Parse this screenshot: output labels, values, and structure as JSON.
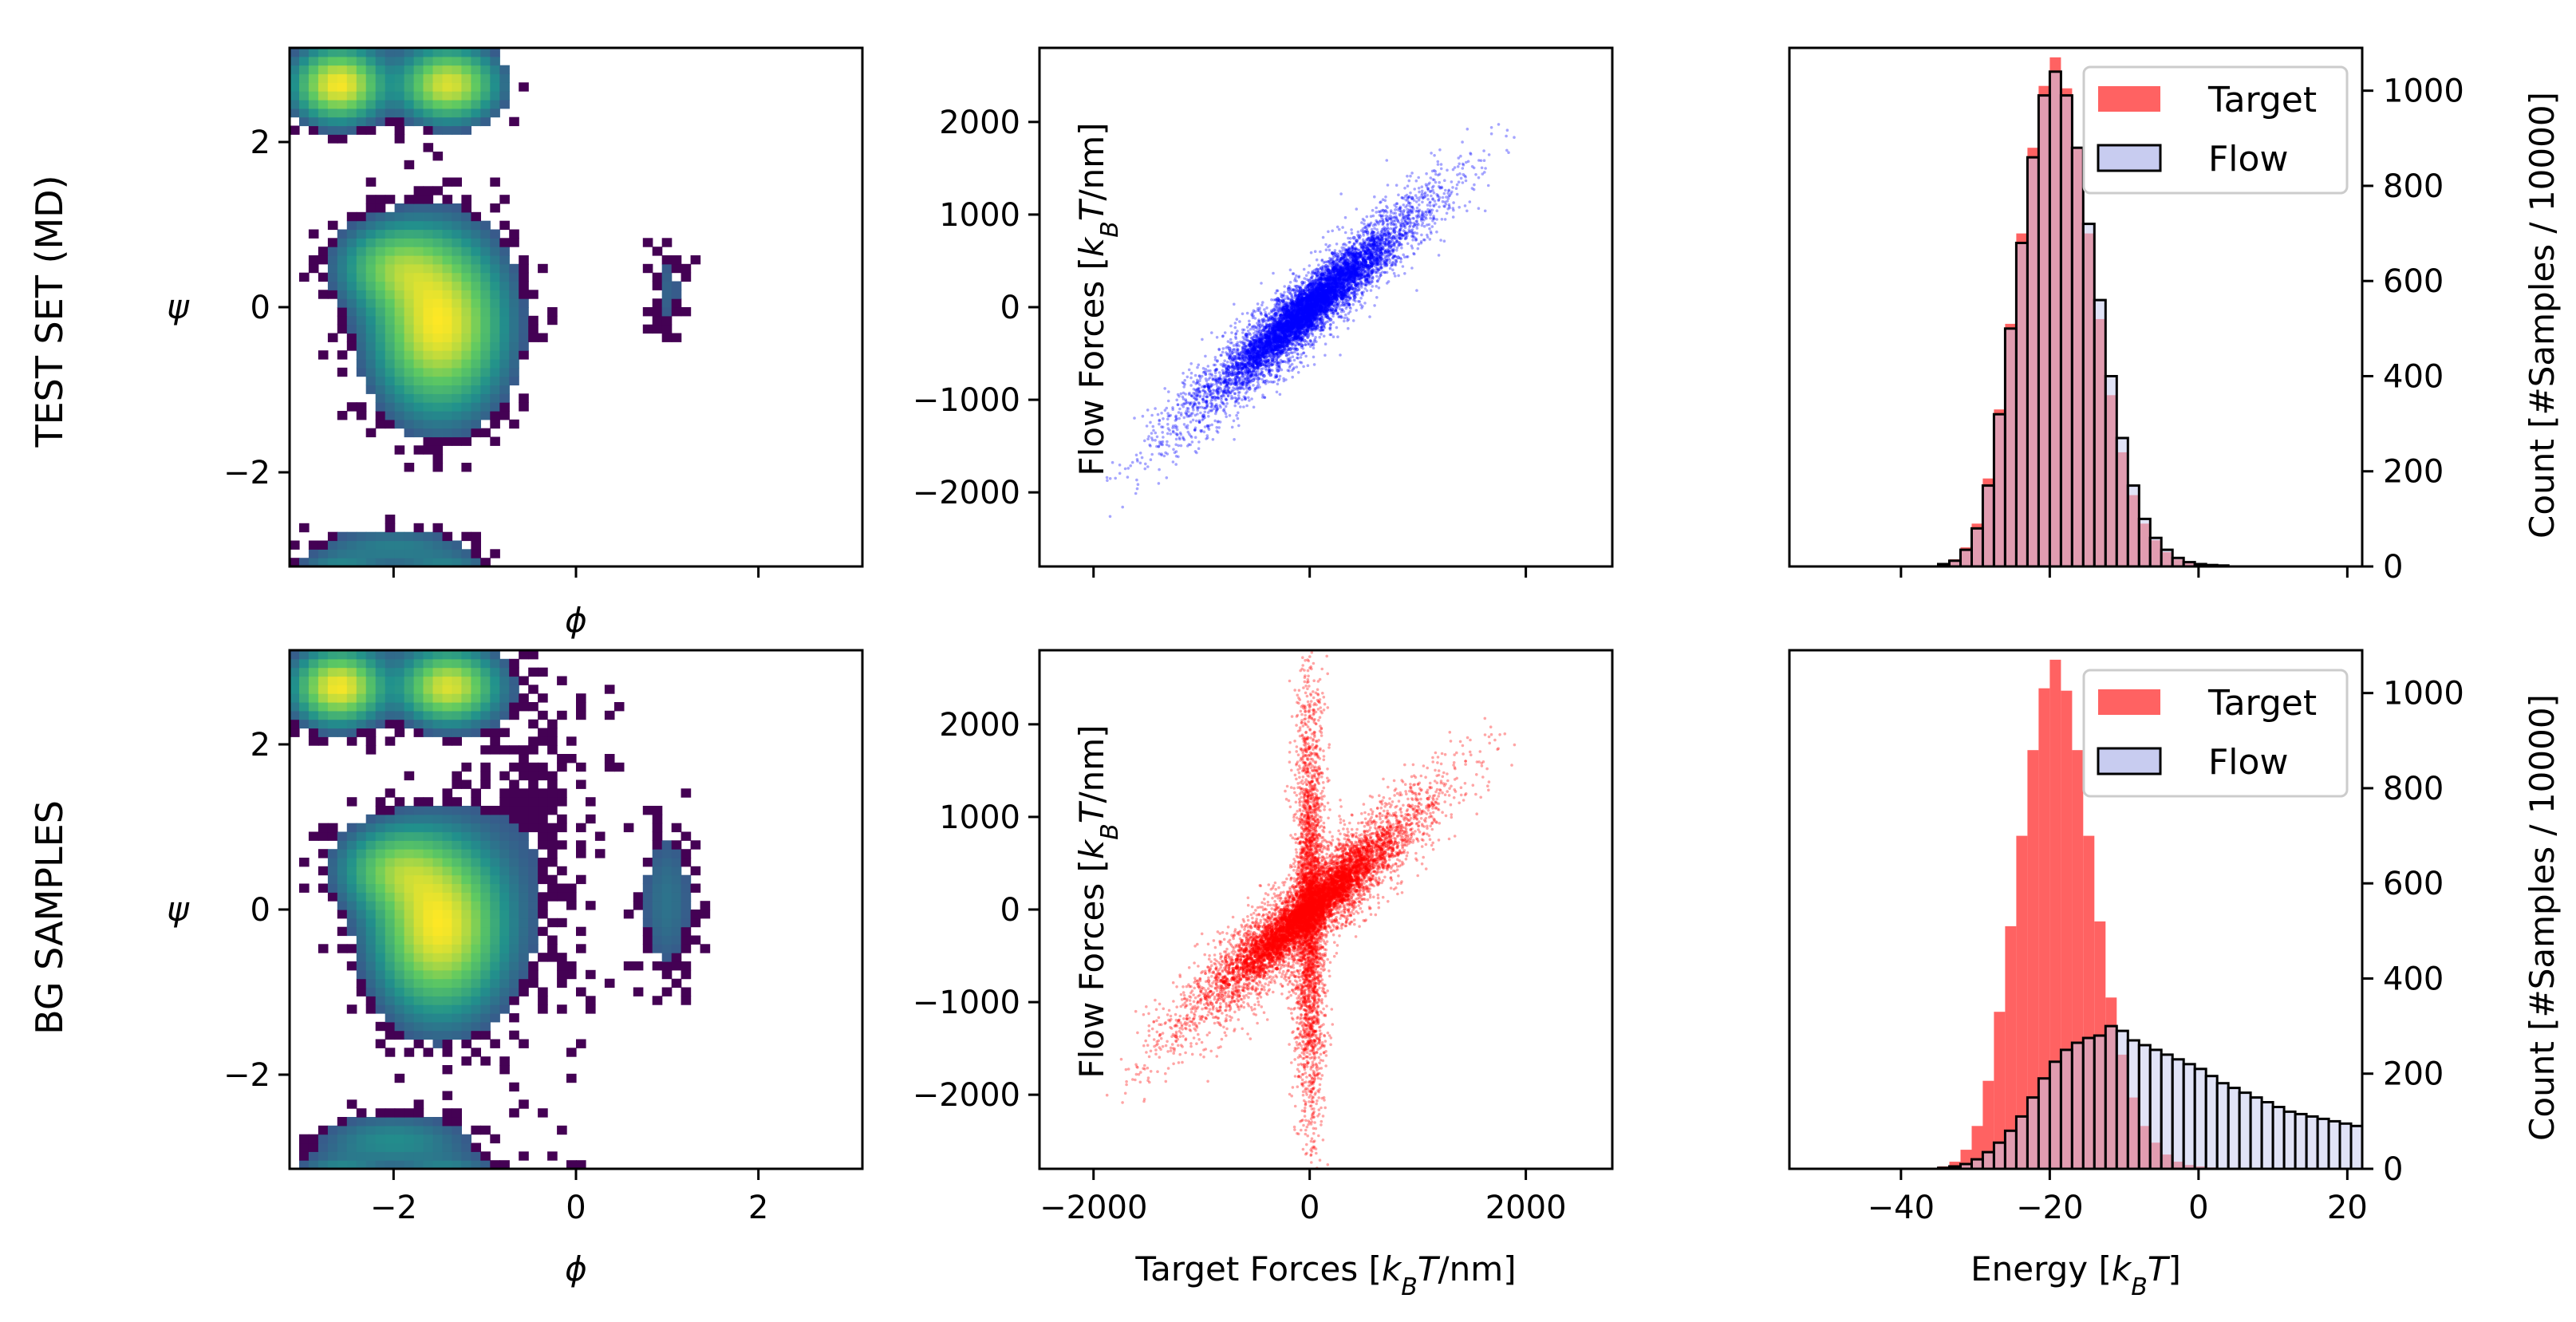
{
  "rows": [
    {
      "label": "TEST SET (MD)",
      "scatter_color": "#0000ff",
      "flow_hist": "test"
    },
    {
      "label": "BG SAMPLES",
      "scatter_color": "#ff0000",
      "flow_hist": "bg"
    }
  ],
  "colors": {
    "target_fill": "#ff6262",
    "flow_fill": "#c8ccf0",
    "flow_edge": "#000000",
    "test_scatter": "#0000ff",
    "bg_scatter": "#ff0000",
    "viridis": [
      "#440154",
      "#3b528b",
      "#21918c",
      "#5ec962",
      "#fde725"
    ]
  },
  "chart_data": [
    {
      "type": "heatmap",
      "panel": "ramachandran-test",
      "xlabel": "ϕ",
      "ylabel": "ψ",
      "xlim": [
        -3.14,
        3.14
      ],
      "ylim": [
        -3.14,
        3.14
      ],
      "xticks": [
        -2,
        0,
        2
      ],
      "yticks": [
        -2,
        0,
        2
      ],
      "xtick_labels_shown": false,
      "ytick_labels": [
        "−2",
        "0",
        "2"
      ],
      "modes": [
        {
          "phi": -2.6,
          "psi": 2.7,
          "sphi": 0.28,
          "spsi": 0.25,
          "w": 1.0
        },
        {
          "phi": -1.4,
          "psi": 2.7,
          "sphi": 0.3,
          "spsi": 0.25,
          "w": 0.9
        },
        {
          "phi": -1.5,
          "psi": -0.2,
          "sphi": 0.4,
          "spsi": 0.6,
          "w": 1.0
        },
        {
          "phi": -2.0,
          "psi": 0.5,
          "sphi": 0.35,
          "spsi": 0.3,
          "w": 0.5
        },
        {
          "phi": 1.0,
          "psi": 0.2,
          "sphi": 0.15,
          "spsi": 0.4,
          "w": 0.08
        },
        {
          "phi": -2.0,
          "psi": -2.9,
          "sphi": 0.5,
          "spsi": 0.15,
          "w": 0.15
        }
      ]
    },
    {
      "type": "scatter",
      "panel": "forces-test",
      "xlabel": "",
      "ylabel": "Flow Forces [k_BT/nm]",
      "xlim": [
        -2500,
        2800
      ],
      "ylim": [
        -2800,
        2800
      ],
      "xticks": [
        -2000,
        0,
        2000
      ],
      "yticks": [
        -2000,
        -1000,
        0,
        1000,
        2000
      ],
      "xtick_labels_shown": false,
      "ytick_labels": [
        "−2000",
        "−1000",
        "0",
        "1000",
        "2000"
      ],
      "series": [
        {
          "relation": "y≈x",
          "spread": 250,
          "x_range": [
            -1800,
            1800
          ]
        }
      ]
    },
    {
      "type": "bar",
      "panel": "energy-test",
      "xlabel": "",
      "ylabel": "Count   [#Samples / 10000]",
      "xlim": [
        -55,
        22
      ],
      "ylim": [
        0,
        1090
      ],
      "xticks": [
        -40,
        -20,
        0,
        20
      ],
      "yticks": [
        0,
        200,
        400,
        600,
        800,
        1000
      ],
      "xtick_labels_shown": false,
      "ytick_labels": [
        "0",
        "200",
        "400",
        "600",
        "800",
        "1000"
      ],
      "legend": "top-right",
      "series": [
        {
          "name": "Target",
          "hist": "target"
        },
        {
          "name": "Flow",
          "hist": "flow_test"
        }
      ]
    },
    {
      "type": "heatmap",
      "panel": "ramachandran-bg",
      "xlabel": "ϕ",
      "ylabel": "ψ",
      "xlim": [
        -3.14,
        3.14
      ],
      "ylim": [
        -3.14,
        3.14
      ],
      "xticks": [
        -2,
        0,
        2
      ],
      "yticks": [
        -2,
        0,
        2
      ],
      "xtick_labels": [
        "−2",
        "0",
        "2"
      ],
      "ytick_labels": [
        "−2",
        "0",
        "2"
      ],
      "modes": [
        {
          "phi": -2.6,
          "psi": 2.7,
          "sphi": 0.28,
          "spsi": 0.25,
          "w": 1.0
        },
        {
          "phi": -1.4,
          "psi": 2.7,
          "sphi": 0.3,
          "spsi": 0.25,
          "w": 0.9
        },
        {
          "phi": -1.5,
          "psi": -0.2,
          "sphi": 0.4,
          "spsi": 0.6,
          "w": 1.0
        },
        {
          "phi": -2.0,
          "psi": 0.5,
          "sphi": 0.35,
          "spsi": 0.3,
          "w": 0.5
        },
        {
          "phi": 1.0,
          "psi": 0.1,
          "sphi": 0.2,
          "spsi": 0.6,
          "w": 0.12
        },
        {
          "phi": -2.0,
          "psi": -2.8,
          "sphi": 0.5,
          "spsi": 0.2,
          "w": 0.2
        },
        {
          "phi": -0.5,
          "psi": 1.0,
          "sphi": 0.5,
          "spsi": 1.5,
          "w": 0.05
        }
      ]
    },
    {
      "type": "scatter",
      "panel": "forces-bg",
      "xlabel": "Target Forces [k_BT/nm]",
      "ylabel": "Flow Forces [k_BT/nm]",
      "xlim": [
        -2500,
        2800
      ],
      "ylim": [
        -2800,
        2800
      ],
      "xticks": [
        -2000,
        0,
        2000
      ],
      "yticks": [
        -2000,
        -1000,
        0,
        1000,
        2000
      ],
      "xtick_labels": [
        "−2000",
        "0",
        "2000"
      ],
      "ytick_labels": [
        "−2000",
        "−1000",
        "0",
        "1000",
        "2000"
      ],
      "series": [
        {
          "relation": "y≈x",
          "spread": 300,
          "x_range": [
            -1800,
            1800
          ]
        },
        {
          "relation": "x≈0 vertical band",
          "spread": 70,
          "y_range": [
            -2800,
            2800
          ]
        }
      ]
    },
    {
      "type": "bar",
      "panel": "energy-bg",
      "xlabel": "Energy   [k_BT]",
      "ylabel": "Count   [#Samples / 10000]",
      "xlim": [
        -55,
        22
      ],
      "ylim": [
        0,
        1090
      ],
      "xticks": [
        -40,
        -20,
        0,
        20
      ],
      "yticks": [
        0,
        200,
        400,
        600,
        800,
        1000
      ],
      "xtick_labels": [
        "−40",
        "−20",
        "0",
        "20"
      ],
      "ytick_labels": [
        "0",
        "200",
        "400",
        "600",
        "800",
        "1000"
      ],
      "legend": "top-right",
      "series": [
        {
          "name": "Target",
          "hist": "target"
        },
        {
          "name": "Flow",
          "hist": "flow_bg"
        }
      ]
    }
  ],
  "histograms": {
    "bin_start": -35,
    "bin_width": 1.5,
    "target": [
      5,
      15,
      40,
      90,
      185,
      330,
      510,
      700,
      880,
      1010,
      1070,
      1005,
      880,
      700,
      520,
      360,
      240,
      150,
      90,
      55,
      30,
      15,
      8,
      5,
      3,
      2
    ],
    "flow_test": [
      5,
      12,
      35,
      80,
      170,
      320,
      500,
      680,
      860,
      990,
      1040,
      990,
      880,
      720,
      560,
      400,
      270,
      170,
      100,
      60,
      35,
      18,
      9,
      5,
      3,
      2
    ],
    "flow_bg": [
      2,
      5,
      10,
      20,
      35,
      55,
      80,
      110,
      150,
      190,
      225,
      250,
      265,
      275,
      280,
      300,
      290,
      270,
      260,
      250,
      240,
      230,
      220,
      210,
      195,
      180,
      170,
      160,
      150,
      140,
      130,
      120,
      115,
      110,
      105,
      100,
      95,
      90
    ]
  }
}
